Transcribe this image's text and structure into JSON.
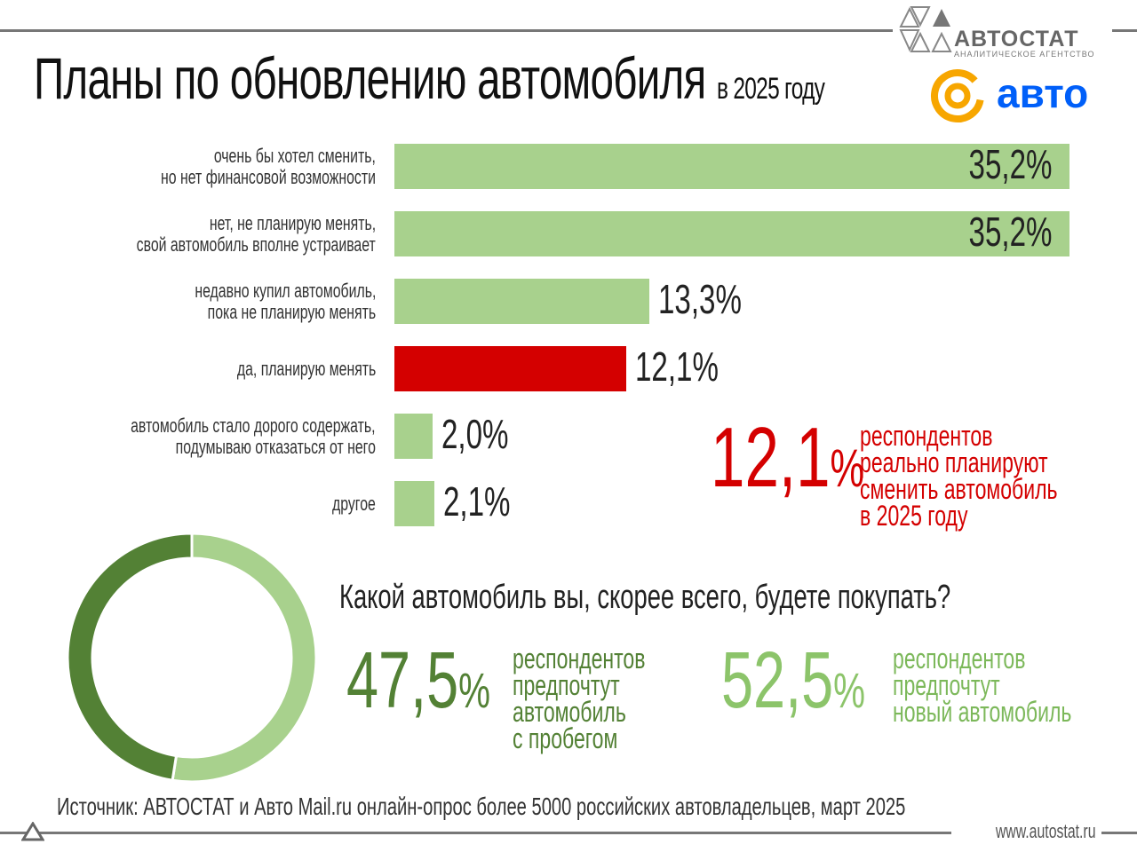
{
  "header": {
    "title": "Планы по обновлению автомобиля",
    "subtitle": "в 2025 году"
  },
  "logos": {
    "autostat": "АВТОСТАТ",
    "autostat_sub": "АНАЛИТИЧЕСКОЕ АГЕНТСТВО",
    "mail_auto": "авто"
  },
  "colors": {
    "bar": "#a8d18d",
    "highlight": "#d40000",
    "donut_dark": "#538135",
    "donut_light": "#a8d18d",
    "accent_red": "#d40000",
    "orange": "#f7a600",
    "blue": "#005ff9"
  },
  "chart_data": [
    {
      "type": "bar",
      "orientation": "horizontal",
      "categories": [
        "очень бы хотел сменить,\nно нет финансовой возможности",
        "нет, не планирую менять,\nсвой автомобиль вполне устраивает",
        "недавно купил автомобиль,\nпока не планирую менять",
        "да, планирую менять",
        "автомобиль стало дорого содержать,\nподумываю отказаться от него",
        "другое"
      ],
      "values": [
        35.2,
        35.2,
        13.3,
        12.1,
        2.0,
        2.1
      ],
      "value_labels": [
        "35,2%",
        "35,2%",
        "13,3%",
        "12,1%",
        "2,0%",
        "2,1%"
      ],
      "highlighted_index": 3
    },
    {
      "type": "pie",
      "donut": true,
      "title": "Какой автомобиль вы, скорее всего, будете покупать?",
      "slices": [
        {
          "label": "респондентов предпочтут новый автомобиль",
          "value": 52.5,
          "value_label": "52,5%",
          "color": "#a8d18d"
        },
        {
          "label": "респондентов предпочтут автомобиль с пробегом",
          "value": 47.5,
          "value_label": "47,5%",
          "color": "#538135"
        }
      ]
    }
  ],
  "callout": {
    "value": "12,1",
    "unit": "%",
    "lines": [
      "респондентов",
      "реально планируют",
      "сменить автомобиль",
      "в 2025 году"
    ]
  },
  "used": {
    "value": "47,5",
    "unit": "%",
    "lines": [
      "респондентов",
      "предпочтут",
      "автомобиль",
      "с пробегом"
    ]
  },
  "new": {
    "value": "52,5",
    "unit": "%",
    "lines": [
      "респондентов",
      "предпочтут",
      "новый автомобиль"
    ]
  },
  "footer": {
    "source": "Источник: АВТОСТАТ и Авто Mail.ru онлайн-опрос более 5000 российских автовладельцев, март 2025",
    "site": "www.autostat.ru"
  }
}
